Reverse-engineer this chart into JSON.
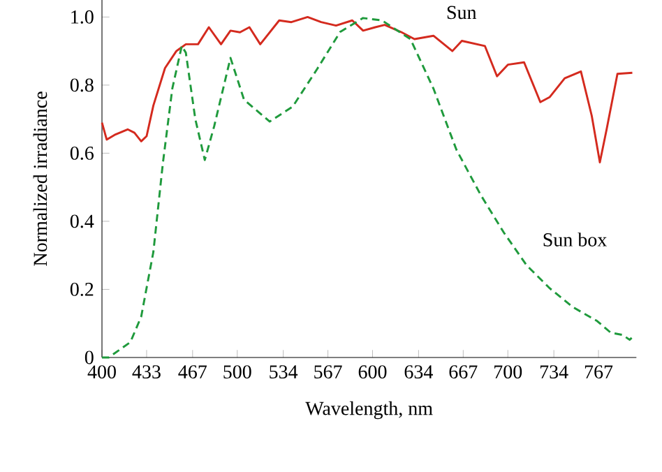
{
  "chart_data": {
    "type": "line",
    "xlabel": "Wavelength, nm",
    "ylabel": "Normalized irradiance",
    "xlim": [
      400,
      795
    ],
    "ylim": [
      0,
      1.05
    ],
    "xticks": [
      400,
      433,
      467,
      500,
      534,
      567,
      600,
      634,
      667,
      700,
      734,
      767
    ],
    "yticks": [
      0,
      0.2,
      0.4,
      0.6,
      0.8,
      {
        "value": 1.0,
        "label": "1.0"
      }
    ],
    "grid": false,
    "legend": false,
    "marker": "none",
    "series": [
      {
        "name": "Sun",
        "color": "#d42a1e",
        "line_style": "solid",
        "x": [
          400,
          403.5,
          410,
          419,
          424,
          429,
          433,
          438,
          446.6,
          455,
          462,
          471,
          479,
          488,
          495,
          502,
          509,
          517,
          531,
          540,
          552,
          562,
          573,
          585,
          593,
          602,
          609,
          621,
          631,
          645,
          659,
          666,
          683,
          692,
          700,
          712,
          724,
          731,
          742,
          754,
          762,
          768,
          773,
          781,
          792
        ],
        "values": [
          0.69,
          0.64,
          0.655,
          0.67,
          0.66,
          0.635,
          0.65,
          0.74,
          0.85,
          0.9,
          0.92,
          0.92,
          0.97,
          0.92,
          0.96,
          0.955,
          0.97,
          0.92,
          0.99,
          0.985,
          1.0,
          0.985,
          0.975,
          0.99,
          0.96,
          0.97,
          0.977,
          0.956,
          0.935,
          0.945,
          0.9,
          0.93,
          0.915,
          0.826,
          0.86,
          0.867,
          0.75,
          0.765,
          0.82,
          0.84,
          0.71,
          0.573,
          0.67,
          0.833,
          0.836
        ]
      },
      {
        "name": "Sun box",
        "color": "#1f9a3c",
        "line_style": "dashed",
        "x": [
          400,
          405,
          421,
          429,
          438,
          445,
          452,
          459,
          462,
          469,
          476,
          483,
          495,
          505,
          524,
          541,
          559,
          576,
          593,
          607,
          628,
          645,
          662,
          680,
          697,
          714,
          731,
          748,
          766,
          776,
          785,
          790,
          793
        ],
        "values": [
          0,
          0,
          0.045,
          0.12,
          0.31,
          0.57,
          0.79,
          0.915,
          0.895,
          0.7,
          0.58,
          0.68,
          0.88,
          0.757,
          0.693,
          0.737,
          0.847,
          0.956,
          0.997,
          0.99,
          0.935,
          0.79,
          0.61,
          0.477,
          0.367,
          0.27,
          0.203,
          0.148,
          0.107,
          0.073,
          0.066,
          0.052,
          0.063
        ]
      }
    ]
  }
}
